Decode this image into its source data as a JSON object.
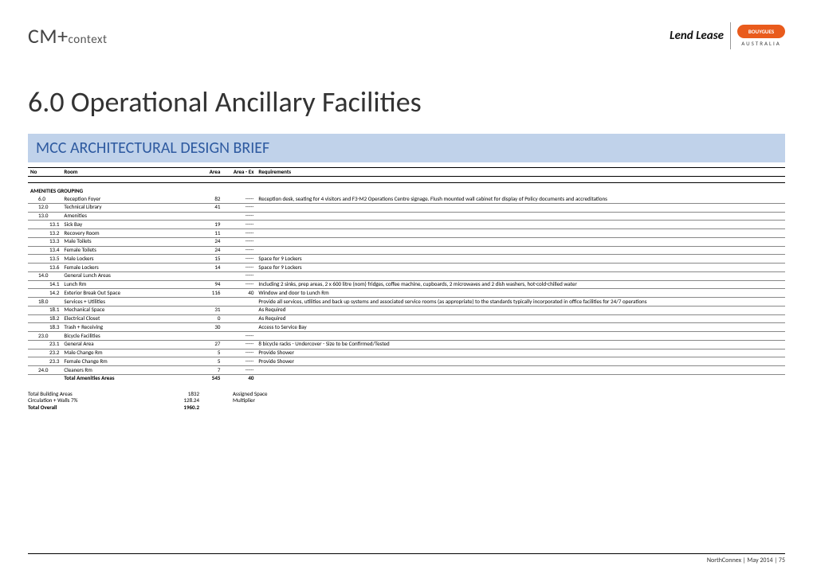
{
  "header": {
    "logo_left_cm": "CM",
    "logo_left_plus": "+",
    "logo_left_context": "context",
    "lendlease_lend": "Lend",
    "lendlease_lease": "Lease",
    "bouygues": "BOUYGUES",
    "australia": "AUSTRALIA"
  },
  "title": "6.0 Operational Ancillary Facilities",
  "brief_title": "MCC ARCHITECTURAL DESIGN BRIEF",
  "columns": {
    "no": "No",
    "room": "Room",
    "area": "Area",
    "area_ex": "Area - Ex",
    "req": "Requirements"
  },
  "group_label": "AMENITIES GROUPING",
  "rows": [
    {
      "no": "6.0",
      "room": "Reception Foyer",
      "area": "82",
      "aex": "-----",
      "req": "Reception desk, seating for 4 visitors and F3-M2 Operations Centre signage.  Flush mounted wall cabinet for display of Policy documents and accreditations",
      "indent": 1,
      "line": true
    },
    {
      "no": "12.0",
      "room": "Technical Library",
      "area": "41",
      "aex": "-----",
      "req": "",
      "indent": 1,
      "line": true
    },
    {
      "no": "13.0",
      "room": "Amenities",
      "area": "",
      "aex": "-----",
      "req": "",
      "indent": 1,
      "line": true
    },
    {
      "no": "13.1",
      "room": "Sick Bay",
      "area": "19",
      "aex": "-----",
      "req": "",
      "indent": 2,
      "line": true
    },
    {
      "no": "13.2",
      "room": "Recovery Room",
      "area": "11",
      "aex": "-----",
      "req": "",
      "indent": 2,
      "line": true
    },
    {
      "no": "13.3",
      "room": "Male Toilets",
      "area": "24",
      "aex": "-----",
      "req": "",
      "indent": 2,
      "line": true
    },
    {
      "no": "13.4",
      "room": "Female Toilets",
      "area": "24",
      "aex": "-----",
      "req": "",
      "indent": 2,
      "line": true
    },
    {
      "no": "13.5",
      "room": "Male Lockers",
      "area": "15",
      "aex": "-----",
      "req": "Space for 9 Lockers",
      "indent": 2,
      "line": true
    },
    {
      "no": "13.6",
      "room": "Female Lockers",
      "area": "14",
      "aex": "-----",
      "req": "Space for 9 Lockers",
      "indent": 2,
      "line": true
    },
    {
      "no": "14.0",
      "room": "General Lunch Areas",
      "area": "",
      "aex": "-----",
      "req": "",
      "indent": 1,
      "line": true
    },
    {
      "no": "14.1",
      "room": "Lunch Rm",
      "area": "94",
      "aex": "-----",
      "req": "Including 2 sinks, prep areas, 2 x 600 litre (nom) fridges, coffee machine, cupboards, 2 microwaves and 2 dish washers, hot-cold-chilled water",
      "indent": 2,
      "line": true
    },
    {
      "no": "14.2",
      "room": "Exterior Break Out Space",
      "area": "116",
      "aex": "40",
      "req": "Window and door to Lunch Rm",
      "indent": 2,
      "line": true
    },
    {
      "no": "18.0",
      "room": "Services + Utilities",
      "area": "",
      "aex": "",
      "req": "Provide all services, utilities and back up systems and associated service rooms (as appropriate) to the standards typically incorporated in office facilities for 24/7 operations",
      "indent": 1,
      "line": true
    },
    {
      "no": "18.1",
      "room": "Mechanical Space",
      "area": "31",
      "aex": "",
      "req": "As Required",
      "indent": 2,
      "line": true
    },
    {
      "no": "18.2",
      "room": "Electrical Closet",
      "area": "0",
      "aex": "",
      "req": "As Required",
      "indent": 2,
      "line": true
    },
    {
      "no": "18.3",
      "room": "Trash + Receiving",
      "area": "30",
      "aex": "",
      "req": "Access to Service Bay",
      "indent": 2,
      "line": true
    },
    {
      "no": "23.0",
      "room": "Bicycle Facilities",
      "area": "",
      "aex": "-----",
      "req": "",
      "indent": 1,
      "line": true
    },
    {
      "no": "23.1",
      "room": "General Area",
      "area": "27",
      "aex": "-----",
      "req": "8 bicycle racks - Undercover - Size to be Confirmed/Tested",
      "indent": 2,
      "line": true
    },
    {
      "no": "23.2",
      "room": "Male Change Rm",
      "area": "5",
      "aex": "-----",
      "req": "Provide Shower",
      "indent": 2,
      "line": true
    },
    {
      "no": "23.3",
      "room": "Female Change Rm",
      "area": "5",
      "aex": "-----",
      "req": "Provide Shower",
      "indent": 2,
      "line": true
    },
    {
      "no": "24.0",
      "room": "Cleaners Rm",
      "area": "7",
      "aex": "-----",
      "req": "",
      "indent": 1,
      "line": true
    }
  ],
  "total_row": {
    "label": "Total Amenities Areas",
    "area": "545",
    "aex": "40"
  },
  "summary": [
    {
      "label": "Total Building Areas",
      "v1": "1832",
      "v2": "",
      "desc": "Assigned Space",
      "bold": false
    },
    {
      "label": "Circulation + Walls 7%",
      "v1": "128.24",
      "v2": "",
      "desc": "Multiplier",
      "bold": false
    },
    {
      "label": "Total Overall",
      "v1": "1960.2",
      "v2": "",
      "desc": "",
      "bold": true
    }
  ],
  "footer": "NorthConnex | May 2014 | 75"
}
